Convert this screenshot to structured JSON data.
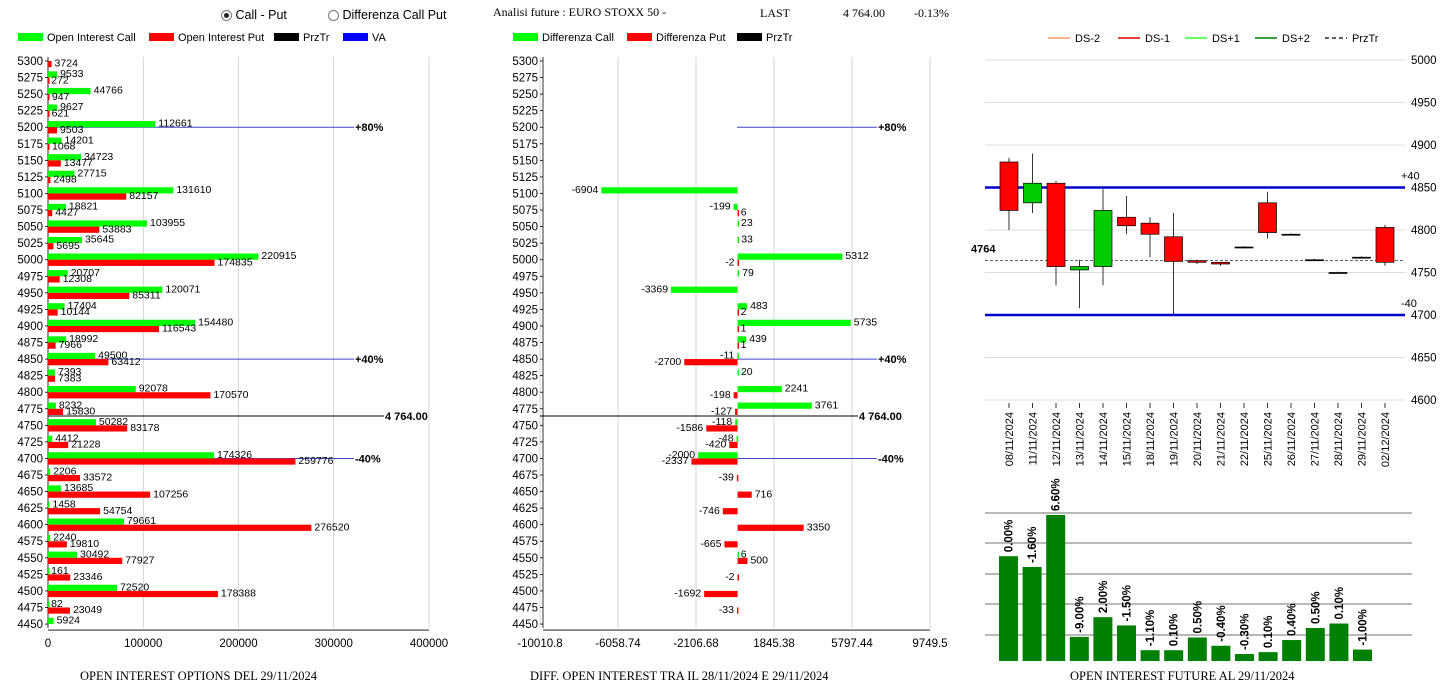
{
  "header": {
    "radio_call_put": "Call - Put",
    "radio_diff": "Differenza Call Put",
    "title": "Analisi future : EURO STOXX 50 -",
    "last_label": "LAST",
    "last_value": "4 764.00",
    "change": "-0.13%"
  },
  "legend_left": [
    {
      "label": "Open Interest Call",
      "color": "#00ff00"
    },
    {
      "label": "Open Interest Put",
      "color": "#ff0000"
    },
    {
      "label": "PrzTr",
      "color": "#000000"
    },
    {
      "label": "VA",
      "color": "#0000ff"
    }
  ],
  "legend_mid": [
    {
      "label": "Differenza Call",
      "color": "#00ff00"
    },
    {
      "label": "Differenza Put",
      "color": "#ff0000"
    },
    {
      "label": "PrzTr",
      "color": "#000000"
    }
  ],
  "legend_right": [
    {
      "label": "DS-2",
      "color": "#ff9966",
      "style": "solid"
    },
    {
      "label": "DS-1",
      "color": "#dd0000",
      "style": "solid"
    },
    {
      "label": "DS+1",
      "color": "#33ff33",
      "style": "solid"
    },
    {
      "label": "DS+2",
      "color": "#008000",
      "style": "solid"
    },
    {
      "label": "PrzTr",
      "color": "#000000",
      "style": "dashed"
    }
  ],
  "footers": {
    "left": "OPEN INTEREST OPTIONS DEL 29/11/2024",
    "mid": "DIFF. OPEN INTEREST TRA IL 28/11/2024 E 29/11/2024",
    "right": "OPEN INTEREST FUTURE AL 29/11/2024"
  },
  "chart_data": [
    {
      "type": "bar",
      "orientation": "horizontal",
      "categories": [
        "5300",
        "5275",
        "5250",
        "5225",
        "5200",
        "5175",
        "5150",
        "5125",
        "5100",
        "5075",
        "5050",
        "5025",
        "5000",
        "4975",
        "4950",
        "4925",
        "4900",
        "4875",
        "4850",
        "4825",
        "4800",
        "4775",
        "4750",
        "4725",
        "4700",
        "4675",
        "4650",
        "4625",
        "4600",
        "4575",
        "4550",
        "4525",
        "4500",
        "4475",
        "4450"
      ],
      "series": [
        {
          "name": "Open Interest Call",
          "color": "#00ff00",
          "values": [
            0,
            9533,
            44766,
            9627,
            112661,
            14201,
            34723,
            27715,
            131610,
            18821,
            103955,
            35645,
            220915,
            20707,
            120071,
            17404,
            154480,
            18992,
            49500,
            7393,
            92078,
            8232,
            50282,
            4412,
            174326,
            2206,
            13685,
            1458,
            79661,
            2240,
            30492,
            161,
            72520,
            82,
            5924
          ]
        },
        {
          "name": "Open Interest Put",
          "color": "#ff0000",
          "values": [
            3724,
            272,
            947,
            621,
            9503,
            1068,
            13477,
            2498,
            82157,
            4427,
            53883,
            5695,
            174835,
            12308,
            85311,
            10144,
            116543,
            7966,
            63412,
            7383,
            170570,
            15830,
            83178,
            21228,
            259776,
            33572,
            107256,
            54754,
            276520,
            19810,
            77927,
            23346,
            178388,
            23049,
            0
          ]
        }
      ],
      "xticks": [
        "0",
        "100000",
        "200000",
        "300000",
        "400000"
      ],
      "xlim": [
        0,
        400000
      ],
      "annotations": [
        {
          "strike": "5200",
          "label": "+80%",
          "color": "#0000ff"
        },
        {
          "strike": "4850",
          "label": "+40%",
          "color": "#0000ff"
        },
        {
          "strike": "4700",
          "label": "-40%",
          "color": "#0000ff"
        },
        {
          "strike": "4764",
          "label": "4 764.00",
          "color": "#000000"
        }
      ]
    },
    {
      "type": "bar",
      "orientation": "horizontal",
      "categories": [
        "5300",
        "5275",
        "5250",
        "5225",
        "5200",
        "5175",
        "5150",
        "5125",
        "5100",
        "5075",
        "5050",
        "5025",
        "5000",
        "4975",
        "4950",
        "4925",
        "4900",
        "4875",
        "4850",
        "4825",
        "4800",
        "4775",
        "4750",
        "4725",
        "4700",
        "4675",
        "4650",
        "4625",
        "4600",
        "4575",
        "4550",
        "4525",
        "4500",
        "4475",
        "4450"
      ],
      "series": [
        {
          "name": "Differenza Call",
          "color": "#00ff00",
          "values": [
            null,
            null,
            null,
            null,
            null,
            null,
            null,
            null,
            -6904,
            -199,
            23,
            33,
            5312,
            79,
            -3369,
            483,
            5735,
            439,
            -11,
            20,
            2241,
            3761,
            -118,
            -48,
            -2000,
            null,
            null,
            null,
            null,
            null,
            6,
            null,
            null,
            null,
            null
          ]
        },
        {
          "name": "Differenza Put",
          "color": "#ff0000",
          "values": [
            null,
            null,
            null,
            null,
            null,
            null,
            null,
            null,
            null,
            6,
            null,
            null,
            -2,
            null,
            null,
            2,
            1,
            1,
            -2700,
            null,
            -198,
            -127,
            -1586,
            -420,
            -2337,
            -39,
            716,
            -746,
            3350,
            -665,
            500,
            -2,
            -1692,
            -33,
            null
          ]
        }
      ],
      "xticks": [
        "-10010.8",
        "-6058.74",
        "-2106.68",
        "1845.38",
        "5797.44",
        "9749.5"
      ],
      "xlim": [
        -10010.8,
        9749.5
      ],
      "annotations": [
        {
          "strike": "5200",
          "label": "+80%",
          "color": "#0000ff"
        },
        {
          "strike": "4850",
          "label": "+40%",
          "color": "#0000ff"
        },
        {
          "strike": "4700",
          "label": "-40%",
          "color": "#0000ff"
        },
        {
          "strike": "4764",
          "label": "4 764.00",
          "color": "#000000"
        }
      ]
    },
    {
      "type": "candlestick",
      "x": [
        "08/11/2024",
        "11/11/2024",
        "12/11/2024",
        "13/11/2024",
        "14/11/2024",
        "15/11/2024",
        "18/11/2024",
        "19/11/2024",
        "20/11/2024",
        "21/11/2024",
        "22/11/2024",
        "25/11/2024",
        "26/11/2024",
        "27/11/2024",
        "28/11/2024",
        "29/11/2024",
        "02/12/2024"
      ],
      "candles": [
        {
          "open": 4823,
          "close": 4880,
          "high": 4885,
          "low": 4800,
          "color": "#ff0000"
        },
        {
          "open": 4832,
          "close": 4855,
          "high": 4890,
          "low": 4820,
          "color": "#00cc00"
        },
        {
          "open": 4855,
          "close": 4757,
          "high": 4858,
          "low": 4735,
          "color": "#ff0000"
        },
        {
          "open": 4753,
          "close": 4757,
          "high": 4765,
          "low": 4708,
          "color": "#00cc00"
        },
        {
          "open": 4757,
          "close": 4823,
          "high": 4848,
          "low": 4735,
          "color": "#00cc00"
        },
        {
          "open": 4815,
          "close": 4805,
          "high": 4840,
          "low": 4795,
          "color": "#ff0000"
        },
        {
          "open": 4808,
          "close": 4795,
          "high": 4815,
          "low": 4768,
          "color": "#ff0000"
        },
        {
          "open": 4792,
          "close": 4763,
          "high": 4820,
          "low": 4700,
          "color": "#ff0000"
        },
        {
          "open": 4764,
          "close": 4762,
          "high": 4765,
          "low": 4760,
          "color": "#ff0000"
        },
        {
          "open": 4762,
          "close": 4760,
          "high": 4762,
          "low": 4758,
          "color": "#ff0000"
        },
        {
          "open": 4780,
          "close": 4780,
          "high": 4781,
          "low": 4779,
          "color": "#ff0000"
        },
        {
          "open": 4832,
          "close": 4797,
          "high": 4845,
          "low": 4790,
          "color": "#ff0000"
        },
        {
          "open": 4795,
          "close": 4795,
          "high": 4796,
          "low": 4794,
          "color": "#ff0000"
        },
        {
          "open": 4765,
          "close": 4765,
          "high": 4766,
          "low": 4764,
          "color": "#ff0000"
        },
        {
          "open": 4750,
          "close": 4750,
          "high": 4751,
          "low": 4749,
          "color": "#ff0000"
        },
        {
          "open": 4768,
          "close": 4768,
          "high": 4769,
          "low": 4767,
          "color": "#ff0000"
        },
        {
          "open": 4803,
          "close": 4762,
          "high": 4806,
          "low": 4758,
          "color": "#ff0000"
        }
      ],
      "yticks": [
        "5000",
        "4950",
        "4900",
        "4850",
        "4800",
        "4750",
        "4700",
        "4650",
        "4600"
      ],
      "ylim": [
        4600,
        5000
      ],
      "hlines": [
        {
          "value": 4850,
          "label": "+40",
          "color": "#0000cc"
        },
        {
          "value": 4700,
          "label": "-40",
          "color": "#0000cc"
        },
        {
          "value": 4764,
          "label": "4764",
          "color": "#000000",
          "style": "dashed"
        }
      ]
    },
    {
      "type": "bar",
      "values": [
        16.5,
        14.8,
        23.0,
        3.8,
        6.9,
        5.6,
        1.7,
        1.7,
        3.7,
        2.4,
        1.1,
        1.4,
        3.3,
        5.2,
        5.9,
        1.8
      ],
      "labels": [
        "0.00%",
        "-1.60%",
        "6.60%",
        "-9.00%",
        "2.00%",
        "-1.50%",
        "-1.10%",
        "0.10%",
        "0.50%",
        "-0.40%",
        "-0.30%",
        "0.10%",
        "0.40%",
        "0.50%",
        "0.10%",
        "-1.00%"
      ],
      "color": "#008000"
    }
  ]
}
